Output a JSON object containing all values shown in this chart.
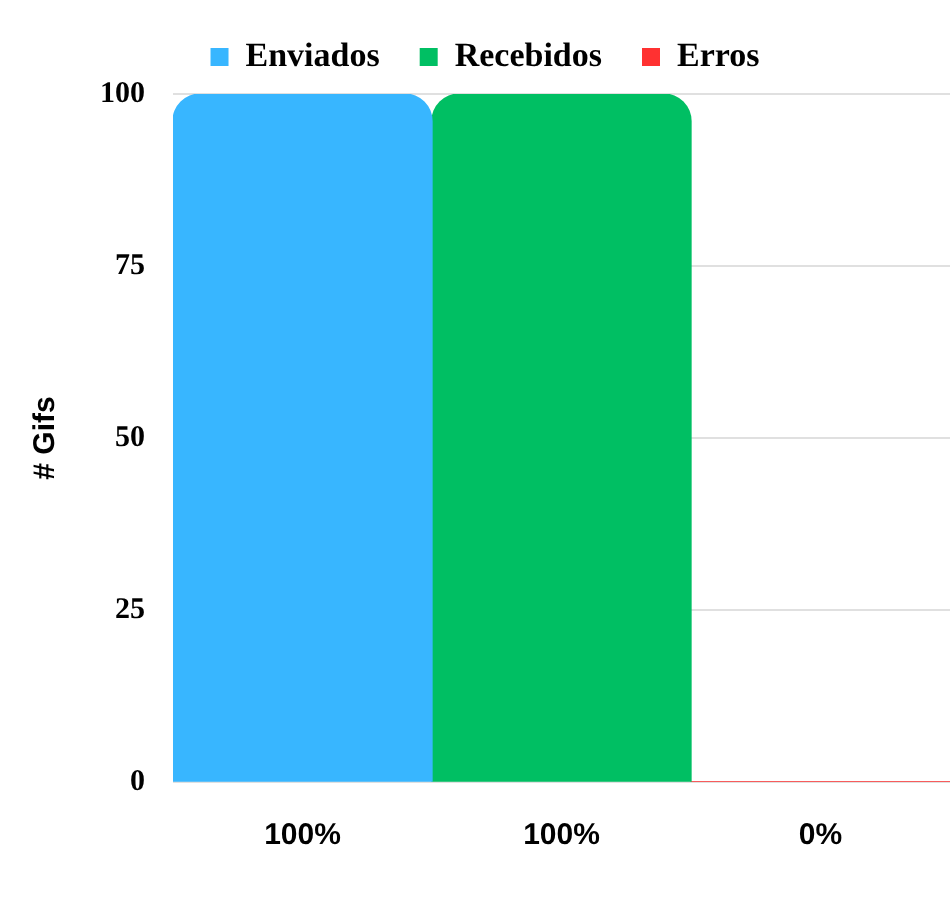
{
  "chart_data": {
    "type": "bar",
    "ylabel": "# Gifs",
    "categories": [
      "100%",
      "100%",
      "0%"
    ],
    "stacked": true,
    "series": [
      {
        "name": "Enviados",
        "color": "#38b6ff",
        "values": [
          100,
          null,
          null
        ]
      },
      {
        "name": "Recebidos",
        "color": "#00bf63",
        "values": [
          null,
          100,
          null
        ]
      },
      {
        "name": "Erros",
        "color": "#ff3131",
        "values": [
          null,
          null,
          0
        ]
      }
    ],
    "ylim": [
      0,
      100
    ],
    "yticks": [
      0,
      25,
      50,
      75,
      100
    ],
    "grid": "y",
    "legend": "top"
  }
}
